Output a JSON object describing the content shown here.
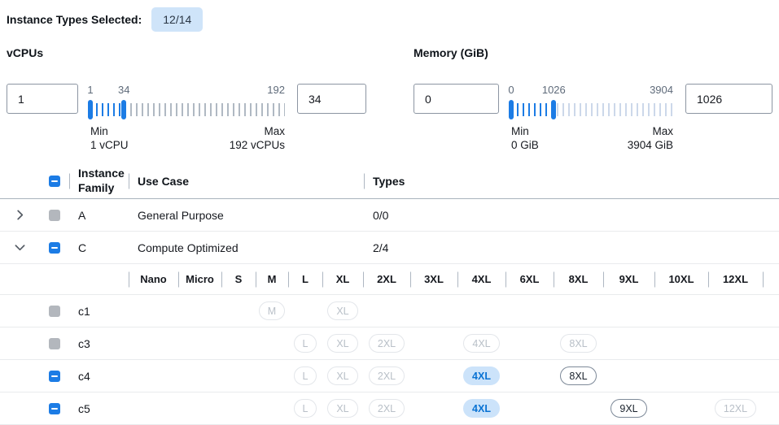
{
  "header": {
    "label": "Instance Types Selected:",
    "badge": "12/14"
  },
  "filters": {
    "vcpus": {
      "title": "vCPUs",
      "range_min": 1,
      "range_max": 192,
      "selected_low": 1,
      "selected_high": 34,
      "low_input": "1",
      "high_input": "34",
      "scale": {
        "low": "1",
        "high": "34",
        "max": "192"
      },
      "min_label": "Min",
      "min_caption": "1 vCPU",
      "max_label": "Max",
      "max_caption": "192 vCPUs"
    },
    "memory": {
      "title": "Memory (GiB)",
      "range_min": 0,
      "range_max": 3904,
      "selected_low": 0,
      "selected_high": 1026,
      "low_input": "0",
      "high_input": "1026",
      "scale": {
        "low": "0",
        "high": "1026",
        "max": "3904"
      },
      "min_label": "Min",
      "min_caption": "0 GiB",
      "max_label": "Max",
      "max_caption": "3904 GiB"
    }
  },
  "table": {
    "columns": {
      "family": "Instance Family",
      "use_case": "Use Case",
      "types": "Types"
    },
    "size_columns": [
      "Nano",
      "Micro",
      "S",
      "M",
      "L",
      "XL",
      "2XL",
      "3XL",
      "4XL",
      "6XL",
      "8XL",
      "9XL",
      "10XL",
      "12XL"
    ],
    "groups": [
      {
        "family": "A",
        "use_case": "General Purpose",
        "types": "0/0",
        "expanded": false,
        "checkbox": "disabled",
        "children": []
      },
      {
        "family": "C",
        "use_case": "Compute Optimized",
        "types": "2/4",
        "expanded": true,
        "checkbox": "indeterminate",
        "children": [
          {
            "name": "c1",
            "checkbox": "disabled",
            "sizes": {
              "M": "disabled",
              "XL": "disabled"
            }
          },
          {
            "name": "c3",
            "checkbox": "disabled",
            "sizes": {
              "L": "disabled",
              "XL": "disabled",
              "2XL": "disabled",
              "4XL": "disabled",
              "8XL": "disabled"
            }
          },
          {
            "name": "c4",
            "checkbox": "indeterminate",
            "sizes": {
              "L": "disabled",
              "XL": "disabled",
              "2XL": "disabled",
              "4XL": "selected",
              "8XL": "enabled"
            }
          },
          {
            "name": "c5",
            "checkbox": "indeterminate",
            "sizes": {
              "L": "disabled",
              "XL": "disabled",
              "2XL": "disabled",
              "4XL": "selected",
              "9XL": "enabled",
              "12XL": "disabled"
            }
          }
        ]
      }
    ]
  },
  "colors": {
    "accent": "#1c7ce5",
    "badge_bg": "#cfe4f9",
    "selected_pill_bg": "#cce3fa",
    "selected_pill_text": "#0972d3",
    "enabled_pill_border": "#7d8998",
    "disabled_pill_border": "#e3e6ea",
    "disabled_pill_text": "#b9c0c8",
    "disabled_checkbox": "#b3b7bd",
    "vcpu_tick": "#b0b9c3",
    "memory_tick": "#ccd8ea"
  }
}
